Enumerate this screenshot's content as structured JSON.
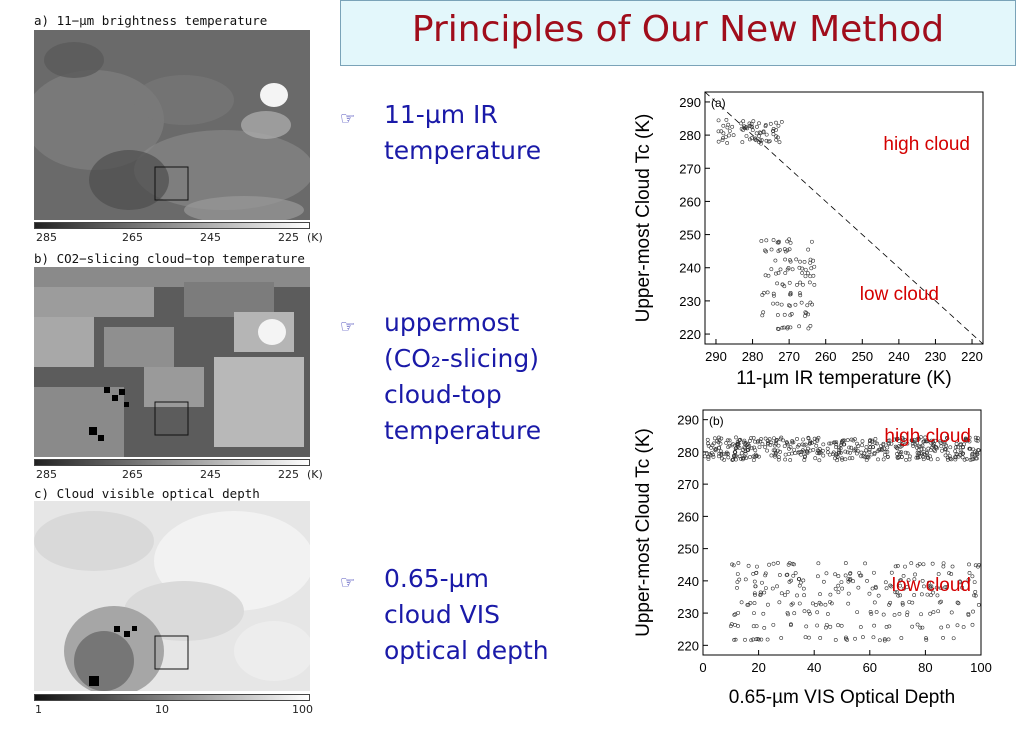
{
  "title": "Principles of Our New Method",
  "panels": [
    {
      "label": "a) 11−µm brightness temperature",
      "ticks": [
        "285",
        "265",
        "245",
        "225",
        "(K)"
      ]
    },
    {
      "label": "b) CO2−slicing cloud−top temperature",
      "ticks": [
        "285",
        "265",
        "245",
        "225",
        "(K)"
      ]
    },
    {
      "label": "c) Cloud visible optical depth",
      "ticks": [
        "1",
        "10",
        "100"
      ]
    }
  ],
  "bullets": [
    {
      "icon": "pointing-hand-icon",
      "lines": [
        "11-µm IR",
        "temperature"
      ]
    },
    {
      "icon": "pointing-hand-icon",
      "lines": [
        "uppermost",
        "(CO₂-slicing)",
        "cloud-top",
        "temperature"
      ]
    },
    {
      "icon": "pointing-hand-icon",
      "lines": [
        "0.65-µm",
        "cloud VIS",
        "optical depth"
      ]
    }
  ],
  "chart_data": [
    {
      "type": "scatter",
      "panel_label": "(a)",
      "xlabel": "11-µm IR temperature (K)",
      "ylabel": "Upper-most Cloud Tc (K)",
      "xlim": [
        293,
        217
      ],
      "ylim": [
        293,
        217
      ],
      "x_ticks": [
        290,
        280,
        270,
        260,
        250,
        240,
        230,
        220
      ],
      "y_ticks": [
        220,
        230,
        240,
        250,
        260,
        270,
        280,
        290
      ],
      "reference_line": "1:1 dashed",
      "annotations": [
        {
          "text": "high cloud",
          "color": "#d40000"
        },
        {
          "text": "low cloud",
          "color": "#d40000"
        }
      ],
      "clusters": [
        {
          "name": "high",
          "x_range": [
            278,
            263
          ],
          "y_values": [
            222,
            226,
            229,
            232,
            235,
            238,
            240,
            242,
            245,
            248
          ]
        },
        {
          "name": "low",
          "x_range": [
            290,
            272
          ],
          "y_values": [
            278,
            279,
            280,
            281,
            282,
            283,
            284
          ]
        }
      ]
    },
    {
      "type": "scatter",
      "panel_label": "(b)",
      "xlabel": "0.65-µm VIS Optical Depth",
      "ylabel": "Upper-most Cloud Tc (K)",
      "xlim": [
        0,
        100
      ],
      "ylim": [
        293,
        217
      ],
      "x_ticks": [
        0,
        20,
        40,
        60,
        80,
        100
      ],
      "y_ticks": [
        220,
        230,
        240,
        250,
        260,
        270,
        280,
        290
      ],
      "annotations": [
        {
          "text": "high cloud",
          "color": "#d40000"
        },
        {
          "text": "low cloud",
          "color": "#d40000"
        }
      ],
      "clusters": [
        {
          "name": "high",
          "x_range": [
            10,
            100
          ],
          "y_values": [
            222,
            226,
            230,
            233,
            236,
            238,
            240,
            242,
            245
          ]
        },
        {
          "name": "low",
          "x_range": [
            0,
            100
          ],
          "y_values": [
            278,
            279,
            280,
            281,
            282,
            283,
            284
          ]
        }
      ]
    }
  ]
}
